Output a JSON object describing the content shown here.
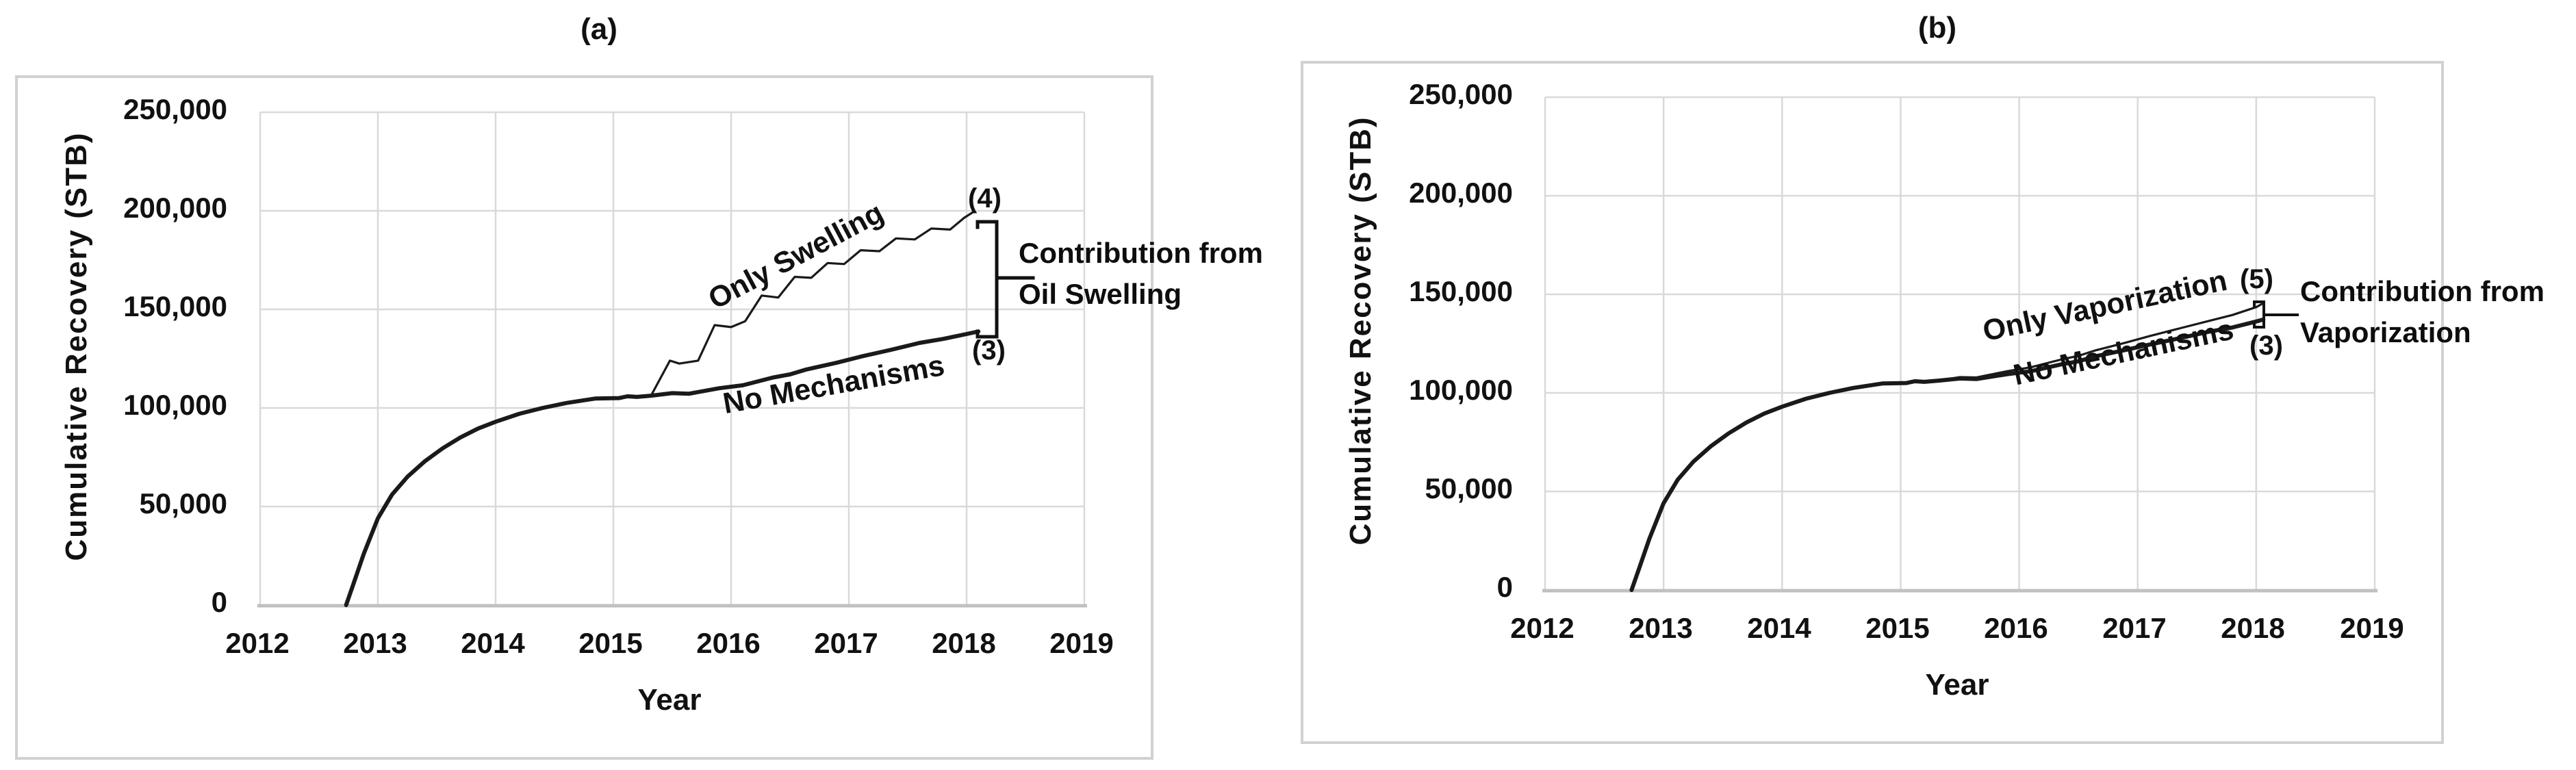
{
  "figure": {
    "colors": {
      "curve": "#1a1a1a",
      "grid": "#d9d9d9",
      "axis": "#c0c0c0",
      "panel_border": "#d1d1d1",
      "text": "#111111"
    }
  },
  "panels": [
    {
      "title": "(a)",
      "ylabel": "Cumulative Recovery (STB)",
      "xlabel": "Year",
      "xticks": [
        "2012",
        "2013",
        "2014",
        "2015",
        "2016",
        "2017",
        "2018",
        "2019"
      ],
      "yticks": [
        "250,000",
        "200,000",
        "150,000",
        "100,000",
        "50,000",
        "0"
      ],
      "curve_label_top": "Only Swelling",
      "curve_label_bottom": "No Mechanisms",
      "marker_top": "(4)",
      "marker_bottom": "(3)",
      "annotation_line1": "Contribution from",
      "annotation_line2": "Oil Swelling"
    },
    {
      "title": "(b)",
      "ylabel": "Cumulative Recovery (STB)",
      "xlabel": "Year",
      "xticks": [
        "2012",
        "2013",
        "2014",
        "2015",
        "2016",
        "2017",
        "2018",
        "2019"
      ],
      "yticks": [
        "250,000",
        "200,000",
        "150,000",
        "100,000",
        "50,000",
        "0"
      ],
      "curve_label_top": "Only Vaporization",
      "curve_label_bottom": "No Mechanisms",
      "marker_top": "(5)",
      "marker_bottom": "(3)",
      "annotation_line1": "Contribution from",
      "annotation_line2": "Vaporization"
    }
  ],
  "chart_data": [
    {
      "type": "line",
      "title": "(a)",
      "xlabel": "Year",
      "ylabel": "Cumulative Recovery (STB)",
      "xlim": [
        2012,
        2019
      ],
      "ylim": [
        0,
        250000
      ],
      "x_ticks": [
        2012,
        2013,
        2014,
        2015,
        2016,
        2017,
        2018,
        2019
      ],
      "y_ticks": [
        0,
        50000,
        100000,
        150000,
        200000,
        250000
      ],
      "grid": true,
      "legend_position": "labels-on-curves",
      "annotation": "Contribution from Oil Swelling (bracket between curve ends (4) and (3))",
      "series": [
        {
          "name": "No Mechanisms",
          "marker": "(3)",
          "end_value": 138800,
          "points": [
            [
              2012.73,
              0
            ],
            [
              2012.8,
              12000
            ],
            [
              2012.88,
              26000
            ],
            [
              2013.0,
              44000
            ],
            [
              2013.12,
              56000
            ],
            [
              2013.25,
              65000
            ],
            [
              2013.4,
              73000
            ],
            [
              2013.55,
              79500
            ],
            [
              2013.7,
              85000
            ],
            [
              2013.85,
              89500
            ],
            [
              2014.0,
              93000
            ],
            [
              2014.2,
              97000
            ],
            [
              2014.4,
              100000
            ],
            [
              2014.6,
              102500
            ],
            [
              2014.85,
              104800
            ],
            [
              2015.05,
              105000
            ],
            [
              2015.12,
              105900
            ],
            [
              2015.2,
              105600
            ],
            [
              2015.32,
              106200
            ],
            [
              2015.5,
              107500
            ],
            [
              2015.64,
              107200
            ],
            [
              2015.9,
              110000
            ],
            [
              2016.1,
              111500
            ],
            [
              2016.36,
              115500
            ],
            [
              2016.5,
              117000
            ],
            [
              2016.64,
              119500
            ],
            [
              2016.9,
              123000
            ],
            [
              2017.1,
              126000
            ],
            [
              2017.36,
              129500
            ],
            [
              2017.6,
              133000
            ],
            [
              2017.8,
              135000
            ],
            [
              2018.0,
              137500
            ],
            [
              2018.1,
              138800
            ]
          ]
        },
        {
          "name": "Only Swelling",
          "marker": "(4)",
          "end_value": 199500,
          "points": [
            [
              2015.32,
              106200
            ],
            [
              2015.48,
              124000
            ],
            [
              2015.56,
              122500
            ],
            [
              2015.72,
              124000
            ],
            [
              2015.86,
              142000
            ],
            [
              2016.0,
              141000
            ],
            [
              2016.12,
              144000
            ],
            [
              2016.26,
              157000
            ],
            [
              2016.4,
              156000
            ],
            [
              2016.54,
              166500
            ],
            [
              2016.68,
              166000
            ],
            [
              2016.82,
              173500
            ],
            [
              2016.96,
              173000
            ],
            [
              2017.1,
              180000
            ],
            [
              2017.26,
              179500
            ],
            [
              2017.4,
              186000
            ],
            [
              2017.56,
              185500
            ],
            [
              2017.7,
              191000
            ],
            [
              2017.86,
              190500
            ],
            [
              2017.98,
              196500
            ],
            [
              2018.06,
              199500
            ]
          ]
        }
      ]
    },
    {
      "type": "line",
      "title": "(b)",
      "xlabel": "Year",
      "ylabel": "Cumulative Recovery (STB)",
      "xlim": [
        2012,
        2019
      ],
      "ylim": [
        0,
        250000
      ],
      "x_ticks": [
        2012,
        2013,
        2014,
        2015,
        2016,
        2017,
        2018,
        2019
      ],
      "y_ticks": [
        0,
        50000,
        100000,
        150000,
        200000,
        250000
      ],
      "grid": true,
      "legend_position": "labels-on-curves",
      "annotation": "Contribution from Vaporization (bracket between curve ends (5) and (3))",
      "series": [
        {
          "name": "No Mechanisms",
          "marker": "(3)",
          "end_value": 137200,
          "points": [
            [
              2012.73,
              0
            ],
            [
              2012.8,
              12000
            ],
            [
              2012.88,
              26000
            ],
            [
              2013.0,
              44000
            ],
            [
              2013.12,
              56000
            ],
            [
              2013.25,
              65000
            ],
            [
              2013.4,
              73000
            ],
            [
              2013.55,
              79500
            ],
            [
              2013.7,
              85000
            ],
            [
              2013.85,
              89500
            ],
            [
              2014.0,
              93000
            ],
            [
              2014.2,
              97000
            ],
            [
              2014.4,
              100000
            ],
            [
              2014.6,
              102500
            ],
            [
              2014.85,
              104800
            ],
            [
              2015.05,
              105000
            ],
            [
              2015.12,
              105900
            ],
            [
              2015.2,
              105600
            ],
            [
              2015.32,
              106200
            ],
            [
              2015.5,
              107300
            ],
            [
              2015.64,
              107000
            ],
            [
              2015.9,
              109500
            ],
            [
              2016.1,
              111000
            ],
            [
              2016.36,
              114500
            ],
            [
              2016.5,
              116000
            ],
            [
              2016.64,
              118500
            ],
            [
              2016.9,
              121800
            ],
            [
              2017.1,
              124500
            ],
            [
              2017.36,
              127800
            ],
            [
              2017.6,
              131000
            ],
            [
              2017.8,
              133200
            ],
            [
              2018.0,
              136200
            ],
            [
              2018.06,
              137200
            ]
          ]
        },
        {
          "name": "Only Vaporization",
          "marker": "(5)",
          "end_value": 145500,
          "points": [
            [
              2015.32,
              106200
            ],
            [
              2015.5,
              108000
            ],
            [
              2015.64,
              107800
            ],
            [
              2015.9,
              111000
            ],
            [
              2016.1,
              113000
            ],
            [
              2016.36,
              117000
            ],
            [
              2016.5,
              118800
            ],
            [
              2016.64,
              121500
            ],
            [
              2016.9,
              125500
            ],
            [
              2017.1,
              128800
            ],
            [
              2017.36,
              132800
            ],
            [
              2017.6,
              136500
            ],
            [
              2017.8,
              139500
            ],
            [
              2018.0,
              143500
            ],
            [
              2018.06,
              145500
            ]
          ]
        }
      ]
    }
  ]
}
